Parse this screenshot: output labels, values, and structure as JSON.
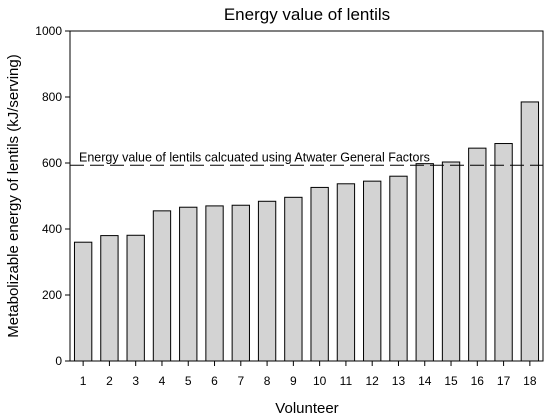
{
  "chart_data": {
    "type": "bar",
    "title": "Energy value of lentils",
    "xlabel": "Volunteer",
    "ylabel": "Metabolizable energy of lentils (kJ/serving)",
    "categories": [
      "1",
      "2",
      "3",
      "4",
      "5",
      "6",
      "7",
      "8",
      "9",
      "10",
      "11",
      "12",
      "13",
      "14",
      "15",
      "16",
      "17",
      "18"
    ],
    "values": [
      360,
      380,
      381,
      455,
      466,
      470,
      472,
      484,
      496,
      526,
      537,
      545,
      560,
      598,
      603,
      645,
      659,
      785
    ],
    "ylim": [
      0,
      1000
    ],
    "yticks": [
      0,
      200,
      400,
      600,
      800,
      1000
    ],
    "reference_line": {
      "value": 593,
      "style": "dashed",
      "label": "Energy value of lentils calcuated using Atwater General Factors"
    },
    "bar_color": "#d3d3d3",
    "bar_edge_color": "#000000",
    "grid": false,
    "legend": "none"
  }
}
